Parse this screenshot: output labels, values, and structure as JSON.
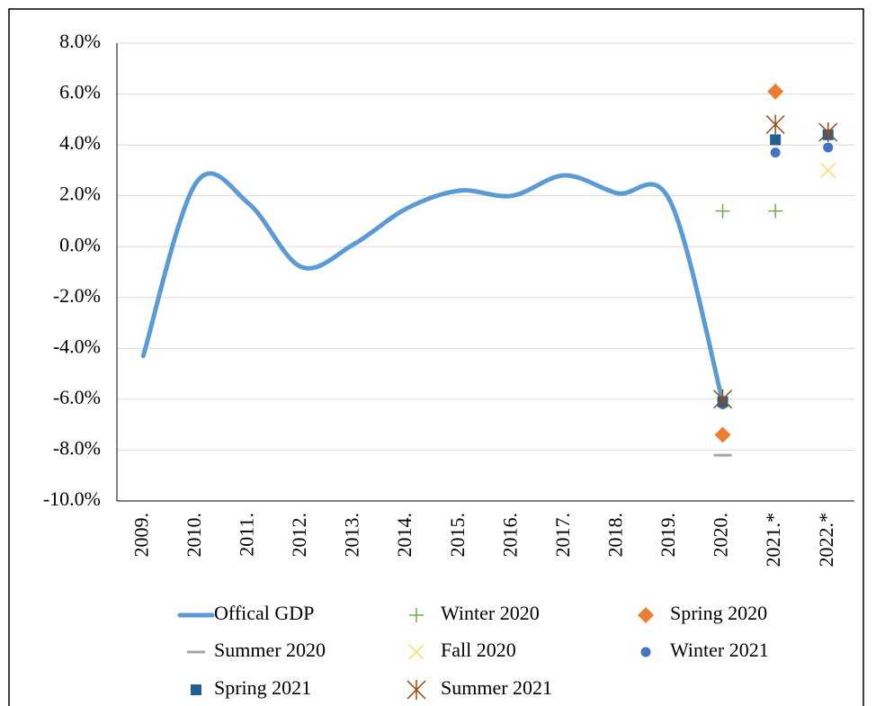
{
  "chart_data": {
    "type": "line",
    "categories": [
      "2009.",
      "2010.",
      "2011.",
      "2012.",
      "2013.",
      "2014.",
      "2015.",
      "2016.",
      "2017.",
      "2018.",
      "2019.",
      "2020.",
      "2021.*",
      "2022.*"
    ],
    "ylim": [
      -10,
      8
    ],
    "yticks": [
      {
        "value": -10,
        "label": "-10.0%"
      },
      {
        "value": -8,
        "label": "-8.0%"
      },
      {
        "value": -6,
        "label": "-6.0%"
      },
      {
        "value": -4,
        "label": "-4.0%"
      },
      {
        "value": -2,
        "label": "-2.0%"
      },
      {
        "value": 0,
        "label": "0.0%"
      },
      {
        "value": 2,
        "label": "2.0%"
      },
      {
        "value": 4,
        "label": "4.0%"
      },
      {
        "value": 6,
        "label": "6.0%"
      },
      {
        "value": 8,
        "label": "8.0%"
      }
    ],
    "grid": true,
    "legend": "bottom",
    "series": [
      {
        "name": "Offical GDP",
        "color": "#5b9bd5",
        "marker": "line",
        "values": [
          -4.3,
          2.5,
          1.7,
          -0.8,
          0.1,
          1.5,
          2.2,
          2.0,
          2.8,
          2.1,
          1.8,
          -6.1,
          null,
          null
        ]
      },
      {
        "name": "Winter 2020",
        "color": "#70ad47",
        "marker": "plus",
        "values": [
          null,
          null,
          null,
          null,
          null,
          null,
          null,
          null,
          null,
          null,
          null,
          1.4,
          1.4,
          null
        ]
      },
      {
        "name": "Spring 2020",
        "color": "#ed7d31",
        "marker": "diamond",
        "values": [
          null,
          null,
          null,
          null,
          null,
          null,
          null,
          null,
          null,
          null,
          null,
          -7.4,
          6.1,
          null
        ]
      },
      {
        "name": "Summer 2020",
        "color": "#a5a5a5",
        "marker": "dash",
        "values": [
          null,
          null,
          null,
          null,
          null,
          null,
          null,
          null,
          null,
          null,
          null,
          -8.2,
          null,
          null
        ]
      },
      {
        "name": "Fall 2020",
        "color": "#ffd966",
        "marker": "x",
        "values": [
          null,
          null,
          null,
          null,
          null,
          null,
          null,
          null,
          null,
          null,
          null,
          null,
          null,
          3.0
        ]
      },
      {
        "name": "Winter 2021",
        "color": "#4472c4",
        "marker": "circle",
        "values": [
          null,
          null,
          null,
          null,
          null,
          null,
          null,
          null,
          null,
          null,
          null,
          -6.2,
          3.7,
          3.9
        ]
      },
      {
        "name": "Spring 2021",
        "color": "#255e91",
        "marker": "square",
        "values": [
          null,
          null,
          null,
          null,
          null,
          null,
          null,
          null,
          null,
          null,
          null,
          -6.1,
          4.2,
          4.4
        ]
      },
      {
        "name": "Summer 2021",
        "color": "#9e480e",
        "marker": "star",
        "values": [
          null,
          null,
          null,
          null,
          null,
          null,
          null,
          null,
          null,
          null,
          null,
          -6.0,
          4.8,
          4.5
        ]
      }
    ]
  }
}
